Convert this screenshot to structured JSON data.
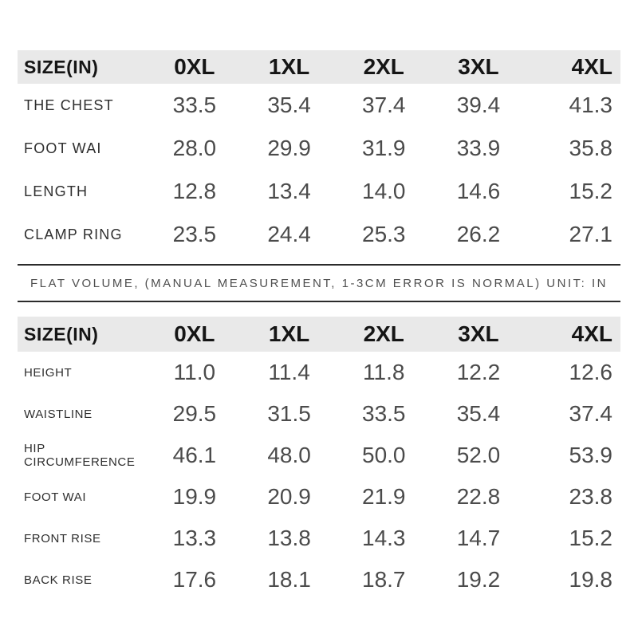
{
  "appearance": {
    "header_bg": "#e9e9e9",
    "header_text": "#151515",
    "value_text": "#4b4b4b",
    "label_text": "#2e2e2e",
    "divider_color": "#2b2b2b",
    "page_bg": "#ffffff"
  },
  "table1": {
    "columns": [
      "SIZE(IN)",
      "0XL",
      "1XL",
      "2XL",
      "3XL",
      "4XL"
    ],
    "rows": [
      {
        "label": "THE CHEST",
        "values": [
          "33.5",
          "35.4",
          "37.4",
          "39.4",
          "41.3"
        ]
      },
      {
        "label": "FOOT WAI",
        "values": [
          "28.0",
          "29.9",
          "31.9",
          "33.9",
          "35.8"
        ]
      },
      {
        "label": "LENGTH",
        "values": [
          "12.8",
          "13.4",
          "14.0",
          "14.6",
          "15.2"
        ]
      },
      {
        "label": "CLAMP RING",
        "values": [
          "23.5",
          "24.4",
          "25.3",
          "26.2",
          "27.1"
        ]
      }
    ]
  },
  "note": {
    "text": "FLAT VOLUME, (MANUAL MEASUREMENT, 1-3CM ERROR IS NORMAL) UNIT: IN"
  },
  "table2": {
    "columns": [
      "SIZE(IN)",
      "0XL",
      "1XL",
      "2XL",
      "3XL",
      "4XL"
    ],
    "rows": [
      {
        "label": "HEIGHT",
        "values": [
          "11.0",
          "11.4",
          "11.8",
          "12.2",
          "12.6"
        ]
      },
      {
        "label": "WAISTLINE",
        "values": [
          "29.5",
          "31.5",
          "33.5",
          "35.4",
          "37.4"
        ]
      },
      {
        "label": "HIP CIRCUMFERENCE",
        "values": [
          "46.1",
          "48.0",
          "50.0",
          "52.0",
          "53.9"
        ]
      },
      {
        "label": "FOOT WAI",
        "values": [
          "19.9",
          "20.9",
          "21.9",
          "22.8",
          "23.8"
        ]
      },
      {
        "label": "FRONT RISE",
        "values": [
          "13.3",
          "13.8",
          "14.3",
          "14.7",
          "15.2"
        ]
      },
      {
        "label": "BACK RISE",
        "values": [
          "17.6",
          "18.1",
          "18.7",
          "19.2",
          "19.8"
        ]
      }
    ]
  }
}
